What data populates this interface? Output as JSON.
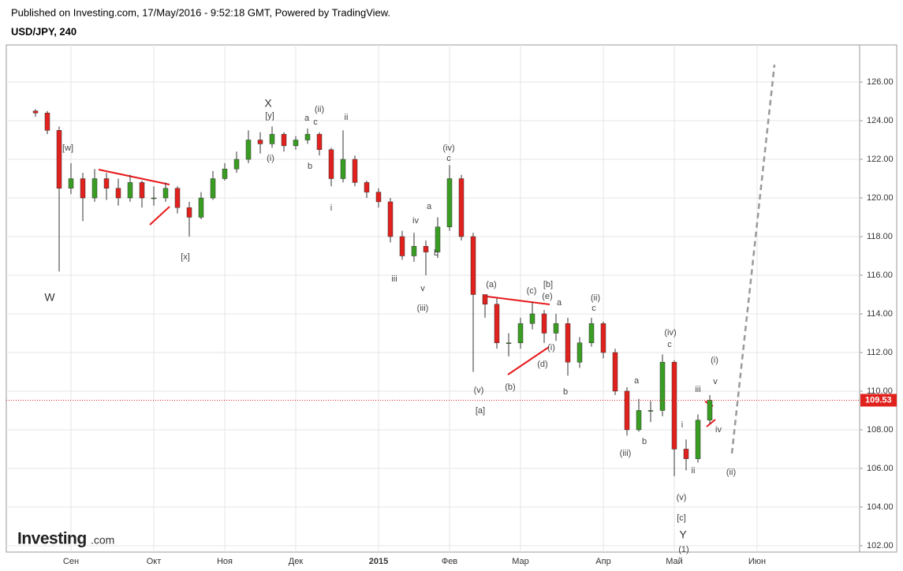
{
  "chart_data": {
    "type": "candlestick",
    "subtitle": "Published on Investing.com, 17/May/2016 - 9:52:18 GMT, Powered by TradingView.",
    "title": "USD/JPY, 240",
    "up_color": "#3a9d23",
    "down_color": "#e0211d",
    "categories": [
      null,
      null,
      null,
      "Сен",
      null,
      null,
      null,
      null,
      null,
      null,
      "Окт",
      null,
      null,
      null,
      null,
      null,
      "Ноя",
      null,
      null,
      null,
      null,
      null,
      "Дек",
      null,
      null,
      null,
      null,
      null,
      null,
      "2015",
      null,
      null,
      null,
      null,
      null,
      "Фев",
      null,
      null,
      null,
      null,
      null,
      "Мар",
      null,
      null,
      null,
      null,
      null,
      null,
      "Апр",
      null,
      null,
      null,
      null,
      null,
      "Май",
      null,
      null,
      null,
      null,
      null,
      null,
      "Июн"
    ],
    "open": [
      124.5,
      124.4,
      123.5,
      120.5,
      121,
      120,
      121,
      120.5,
      120,
      120.8,
      120,
      120,
      120.5,
      119.5,
      119,
      120,
      121,
      121.5,
      122,
      123,
      122.8,
      123.3,
      122.7,
      123,
      123.3,
      122.5,
      121,
      122,
      120.8,
      120.3,
      119.8,
      118,
      117,
      117.5,
      117.2,
      118.5,
      121,
      118,
      115,
      114.5,
      112.5,
      112.5,
      113.5,
      114,
      113,
      113.5,
      111.5,
      112.5,
      113.5,
      112,
      110,
      108,
      109,
      109,
      111.5,
      107,
      106.5,
      108.5,
      null,
      null,
      null,
      null
    ],
    "high": [
      124.6,
      124.5,
      123.7,
      121.8,
      121.3,
      121.5,
      121.3,
      121,
      121.2,
      120.9,
      120.6,
      120.8,
      120.6,
      119.8,
      120.3,
      121.4,
      121.8,
      122.4,
      123.5,
      123.4,
      123.7,
      123.4,
      123.2,
      123.6,
      123.4,
      122.6,
      123.5,
      122.2,
      120.9,
      120.5,
      120,
      118.3,
      118.2,
      117.8,
      119,
      121.7,
      121.2,
      118.2,
      115,
      114.8,
      113,
      113.8,
      114.6,
      114.2,
      114,
      113.8,
      112.8,
      113.8,
      113.6,
      112.2,
      110.2,
      109.6,
      109.5,
      111.9,
      111.6,
      107.5,
      108.8,
      109.8,
      null,
      null,
      null,
      null
    ],
    "low": [
      124.2,
      123.3,
      116.2,
      120.2,
      118.8,
      119.8,
      119.9,
      119.6,
      119.8,
      119.5,
      119.6,
      119.8,
      119.2,
      118,
      118.9,
      119.9,
      120.9,
      121.3,
      121.8,
      122.3,
      122.6,
      122.4,
      122.5,
      122.8,
      122.2,
      120.6,
      120.8,
      120.6,
      120,
      119.5,
      117.7,
      116.8,
      116.7,
      116,
      116.9,
      118.3,
      117.8,
      111,
      113.8,
      112.2,
      111.8,
      112.2,
      113.2,
      112.5,
      112.6,
      110.8,
      111.2,
      112.3,
      111.7,
      109.8,
      107.7,
      107.9,
      108.4,
      108.7,
      105.6,
      105.9,
      106.3,
      108.3,
      null,
      null,
      null,
      null
    ],
    "close": [
      124.4,
      123.5,
      120.5,
      121,
      120,
      121,
      120.5,
      120,
      120.8,
      120,
      120,
      120.5,
      119.5,
      119,
      120,
      121,
      121.5,
      122,
      123,
      122.8,
      123.3,
      122.7,
      123,
      123.3,
      122.5,
      121,
      122,
      120.8,
      120.3,
      119.8,
      118,
      117,
      117.5,
      117.2,
      118.5,
      121,
      118,
      115,
      114.5,
      112.5,
      112.5,
      113.5,
      114,
      113,
      113.5,
      111.5,
      112.5,
      113.5,
      112,
      110,
      108,
      109,
      109,
      111.5,
      107,
      106.5,
      108.5,
      109.53,
      null,
      null,
      null,
      null
    ],
    "last_price": 109.53,
    "ylim": [
      101.67,
      127.92
    ],
    "yticks": [
      {
        "value": 102,
        "label": "102.00"
      },
      {
        "value": 104,
        "label": "104.00"
      },
      {
        "value": 106,
        "label": "106.00"
      },
      {
        "value": 108,
        "label": "108.00"
      },
      {
        "value": 110,
        "label": "110.00"
      },
      {
        "value": 112,
        "label": "112.00"
      },
      {
        "value": 114,
        "label": "114.00"
      },
      {
        "value": 116,
        "label": "116.00"
      },
      {
        "value": 118,
        "label": "118.00"
      },
      {
        "value": 120,
        "label": "120.00"
      },
      {
        "value": 122,
        "label": "122.00"
      },
      {
        "value": 124,
        "label": "124.00"
      },
      {
        "value": 126,
        "label": "126.00"
      }
    ],
    "grid": true,
    "annotations": [
      "W",
      "[w]",
      "[x]",
      "X",
      "[y]",
      "(i)",
      "a",
      "c",
      "(ii)",
      "b",
      "ii",
      "i",
      "iv",
      "a",
      "b",
      "iii",
      "v",
      "(iii)",
      "(iv)",
      "c",
      "(v)",
      "[a]",
      "(a)",
      "(b)",
      "(c)",
      "[b]",
      "(e)",
      "a",
      "(i)",
      "(d)",
      "b",
      "(ii)",
      "c",
      "(iii)",
      "a",
      "b",
      "(iv)",
      "c",
      "i",
      "ii",
      "(v)",
      "[c]",
      "Y",
      "(1)",
      "(i)",
      "v",
      "iii",
      "iv",
      "(ii)"
    ]
  },
  "logo": {
    "brand": "Investing",
    "suffix": ".com"
  }
}
